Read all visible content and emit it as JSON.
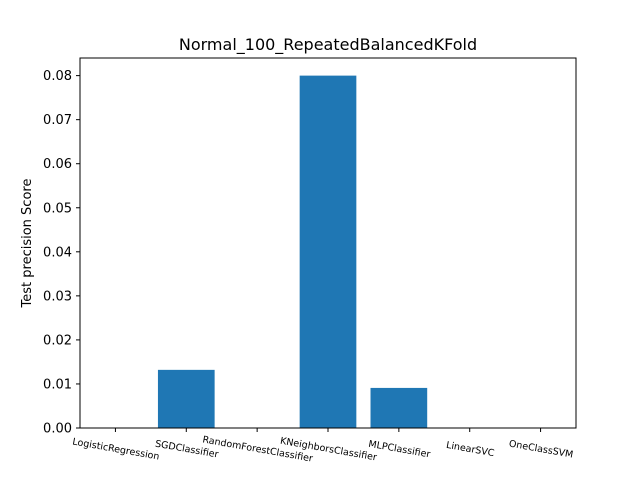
{
  "chart_data": {
    "type": "bar",
    "title": "Normal_100_RepeatedBalancedKFold",
    "xlabel": "",
    "ylabel": "Test precision Score",
    "categories": [
      "LogisticRegression",
      "SGDClassifier",
      "RandomForestClassifier",
      "KNeighborsClassifier",
      "MLPClassifier",
      "LinearSVC",
      "OneClassSVM"
    ],
    "values": [
      0.0,
      0.0132,
      0.0,
      0.08,
      0.0091,
      0.0,
      0.0
    ],
    "ylim": [
      0,
      0.084
    ],
    "yticks": [
      "0.00",
      "0.01",
      "0.02",
      "0.03",
      "0.04",
      "0.05",
      "0.06",
      "0.07",
      "0.08"
    ],
    "bar_color": "#1f77b4",
    "grid": false,
    "legend": "none"
  }
}
